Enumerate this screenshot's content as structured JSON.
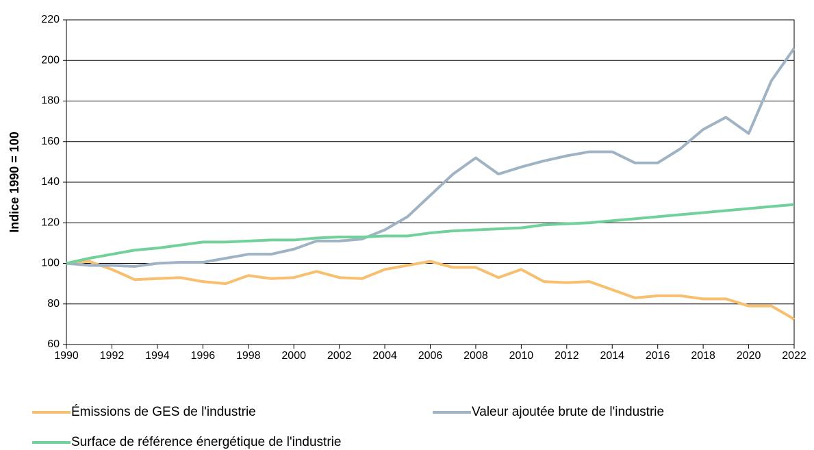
{
  "chart_data": {
    "type": "line",
    "y_label": "Indice 1990 = 100",
    "x": [
      1990,
      1991,
      1992,
      1993,
      1994,
      1995,
      1996,
      1997,
      1998,
      1999,
      2000,
      2001,
      2002,
      2003,
      2004,
      2005,
      2006,
      2007,
      2008,
      2009,
      2010,
      2011,
      2012,
      2013,
      2014,
      2015,
      2016,
      2017,
      2018,
      2019,
      2020,
      2021,
      2022
    ],
    "series": [
      {
        "name": "Émissions de GES de l'industrie",
        "color": "#f7bf6f",
        "values": [
          100,
          101,
          97,
          92,
          92.5,
          93,
          91,
          90,
          94,
          92.5,
          93,
          96,
          93,
          92.5,
          97,
          99,
          101,
          98,
          98,
          93,
          97,
          91,
          90.5,
          91,
          87,
          83,
          84,
          84,
          82.5,
          82.5,
          79,
          79,
          72.5
        ]
      },
      {
        "name": "Valeur ajoutée brute de l'industrie",
        "color": "#9fb3c4",
        "values": [
          100,
          99,
          99,
          98.5,
          100,
          100.5,
          100.5,
          102.5,
          104.5,
          104.5,
          107,
          111,
          111,
          112,
          116.5,
          123,
          133.5,
          144,
          152,
          144,
          147.5,
          150.5,
          153,
          155,
          155,
          149.5,
          149.5,
          156.5,
          166,
          172,
          164,
          190,
          206
        ]
      },
      {
        "name": "Surface de référence énergétique de l'industrie",
        "color": "#72d19a",
        "values": [
          100,
          102.5,
          104.5,
          106.5,
          107.5,
          109,
          110.5,
          110.5,
          111,
          111.5,
          111.5,
          112.5,
          113,
          113,
          113.5,
          113.5,
          115,
          116,
          116.5,
          117,
          117.5,
          119,
          119.5,
          120,
          121,
          122,
          123,
          124,
          125,
          126,
          127,
          128,
          129
        ]
      }
    ],
    "xlim": [
      1990,
      2022
    ],
    "xticks": [
      1990,
      1992,
      1994,
      1996,
      1998,
      2000,
      2002,
      2004,
      2006,
      2008,
      2010,
      2012,
      2014,
      2016,
      2018,
      2020,
      2022
    ],
    "ylim": [
      60,
      220
    ],
    "yticks": [
      60,
      80,
      100,
      120,
      140,
      160,
      180,
      200,
      220
    ],
    "grid": true
  }
}
